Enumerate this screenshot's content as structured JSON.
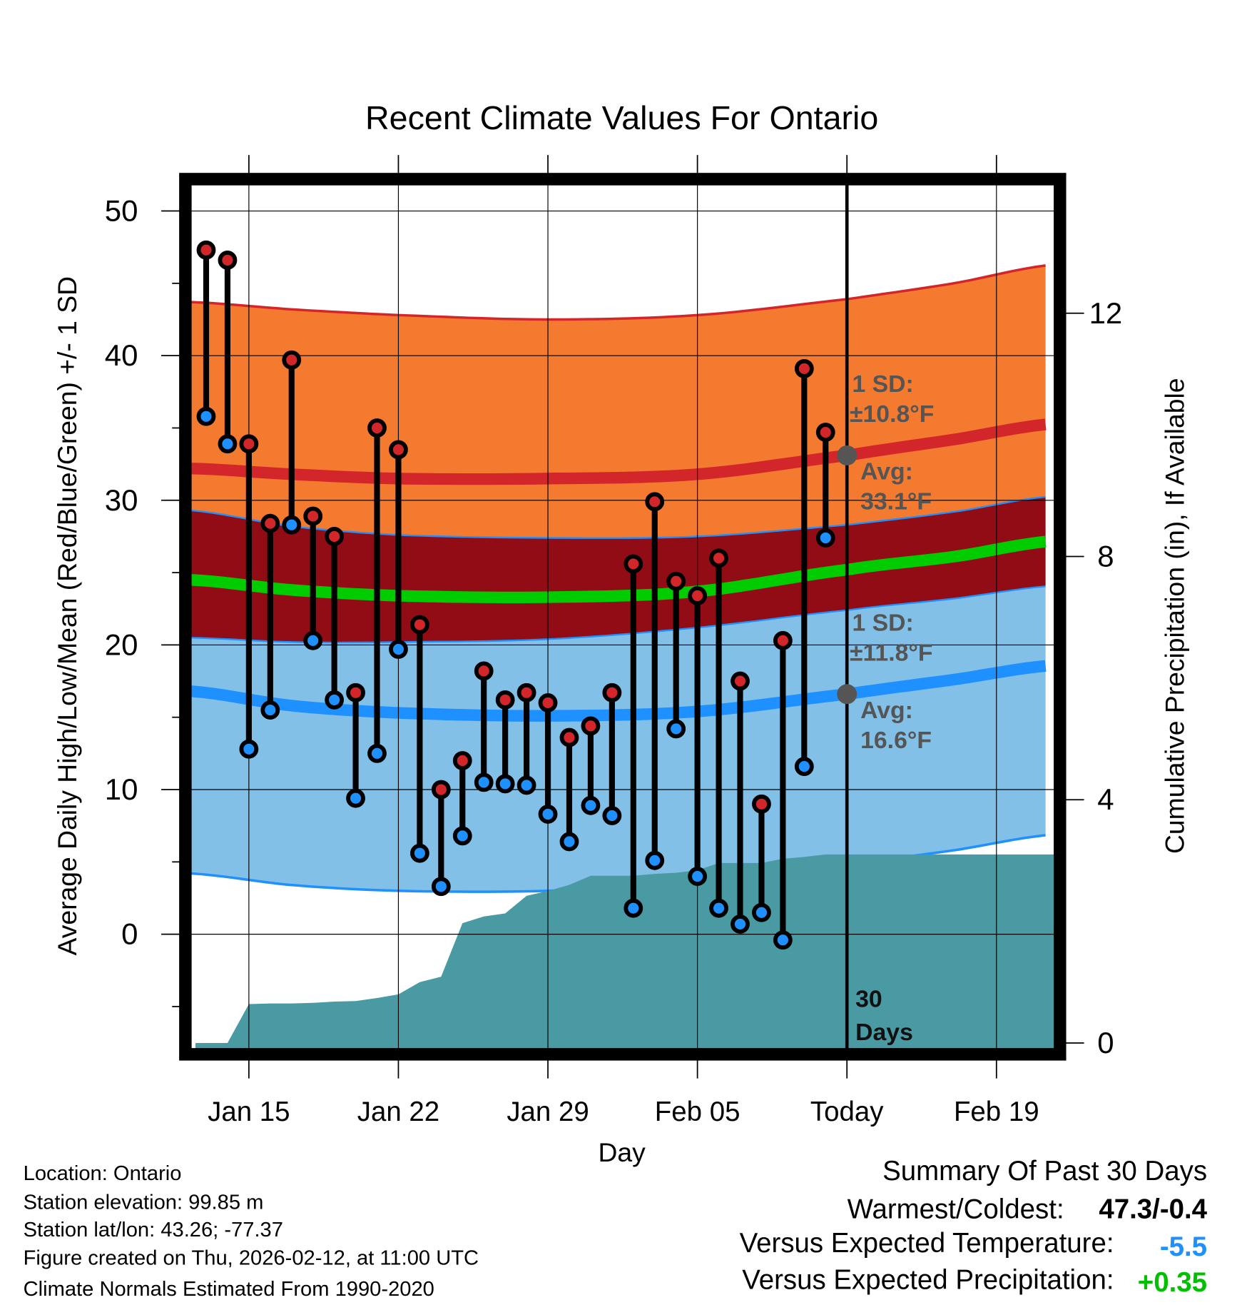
{
  "chart_data": {
    "type": "line",
    "title": "Recent Climate Values For Ontario",
    "xlabel": "Day",
    "ylabel": "Average Daily High/Low/Mean (Red/Blue/Green) +/- 1 SD",
    "y2label": "Cumulative Precipitation (in), If Available",
    "x_unit": "days since Jan 15",
    "xlim": [
      -2.7,
      37.7
    ],
    "ylim": [
      -7.9,
      51.8
    ],
    "y2lim": [
      -0.2,
      14.0
    ],
    "x_ticks": [
      {
        "x": 0,
        "label": "Jan 15"
      },
      {
        "x": 7,
        "label": "Jan 22"
      },
      {
        "x": 14,
        "label": "Jan 29"
      },
      {
        "x": 21,
        "label": "Feb 05"
      },
      {
        "x": 28,
        "label": "Today"
      },
      {
        "x": 35,
        "label": "Feb 19"
      }
    ],
    "y_ticks": [
      0,
      10,
      20,
      30,
      40,
      50
    ],
    "y2_ticks": [
      0,
      4,
      8,
      12
    ],
    "today_x": 28,
    "days_x": [
      -2,
      -1,
      0,
      1,
      2,
      3,
      4,
      5,
      6,
      7,
      8,
      9,
      10,
      11,
      12,
      13,
      14,
      15,
      16,
      17,
      18,
      19,
      20,
      21,
      22,
      23,
      24,
      25,
      26,
      27
    ],
    "highs": [
      47.3,
      46.6,
      33.9,
      28.4,
      39.7,
      28.9,
      27.5,
      16.7,
      35.0,
      33.5,
      21.4,
      10.0,
      12.0,
      18.2,
      16.2,
      16.7,
      16.0,
      13.6,
      14.4,
      16.7,
      25.6,
      29.9,
      24.4,
      23.4,
      26.0,
      17.5,
      9.0,
      20.3,
      39.1,
      34.7
    ],
    "lows": [
      35.8,
      33.9,
      12.8,
      15.5,
      28.3,
      20.3,
      16.2,
      9.4,
      12.5,
      19.7,
      5.6,
      3.3,
      6.8,
      10.5,
      10.4,
      10.3,
      8.3,
      6.4,
      8.9,
      8.2,
      1.8,
      5.1,
      14.2,
      4.0,
      1.8,
      0.7,
      1.5,
      -0.4,
      11.6,
      27.4
    ],
    "precip_cumulative": [
      0,
      0,
      0.64,
      0.65,
      0.65,
      0.66,
      0.68,
      0.69,
      0.74,
      0.8,
      1.0,
      1.09,
      1.97,
      2.08,
      2.13,
      2.42,
      2.5,
      2.6,
      2.75,
      2.75,
      2.75,
      2.78,
      2.8,
      2.84,
      2.96,
      2.96,
      2.96,
      3.03,
      3.06,
      3.1
    ],
    "precip_extend_to_x": 37.7,
    "normals_x": [
      -2.7,
      2,
      7,
      14,
      21,
      28,
      33,
      37.7
    ],
    "normal_high_mean": [
      32.2,
      31.8,
      31.5,
      31.5,
      31.8,
      33.1,
      34.2,
      35.3
    ],
    "normal_high_upper": [
      43.7,
      43.2,
      42.8,
      42.5,
      42.8,
      43.9,
      45.0,
      46.3
    ],
    "normal_high_lower": [
      29.3,
      28.2,
      27.6,
      27.4,
      27.5,
      28.3,
      29.2,
      30.3
    ],
    "normal_mean": [
      24.5,
      23.8,
      23.4,
      23.3,
      23.7,
      25.2,
      26.1,
      27.2
    ],
    "normal_low_mean": [
      16.8,
      15.8,
      15.3,
      15.1,
      15.4,
      16.6,
      17.6,
      18.6
    ],
    "normal_low_upper": [
      20.5,
      20.2,
      20.2,
      20.4,
      21.2,
      22.4,
      23.2,
      24.1
    ],
    "normal_low_lower": [
      4.2,
      3.4,
      3.0,
      3.0,
      3.6,
      4.8,
      5.8,
      6.9
    ],
    "annotations": {
      "high_sd_label": "1 SD:",
      "high_sd_value": "±10.8°F",
      "high_avg_label": "Avg:",
      "high_avg_value": "33.1°F",
      "high_avg": 33.1,
      "low_sd_label": "1 SD:",
      "low_sd_value": "±11.8°F",
      "low_avg_label": "Avg:",
      "low_avg_value": "16.6°F",
      "low_avg": 16.6,
      "days_label_1": "30",
      "days_label_2": "Days"
    },
    "colors": {
      "high_band": "#f47a30",
      "mean_band": "#920c15",
      "low_band": "#83c0e8",
      "high_line": "#d3262a",
      "mean_line": "#00cc00",
      "low_line": "#1e90ff",
      "precip": "#4a9aa3",
      "high_dot": "#d3262a",
      "low_dot": "#1e90ff"
    }
  },
  "footer": {
    "location": "Location: Ontario",
    "elevation": "Station elevation: 99.85 m",
    "latlon": "Station lat/lon: 43.26; -77.37",
    "created": "Figure created on Thu, 2026-02-12, at 11:00 UTC",
    "normals": "Climate Normals Estimated From 1990-2020"
  },
  "summary": {
    "title": "Summary Of Past 30 Days",
    "warmest_label": "Warmest/Coldest:",
    "warmest_value": "47.3/-0.4",
    "temp_label": "Versus Expected Temperature:",
    "temp_value": "-5.5",
    "precip_label": "Versus Expected Precipitation:",
    "precip_value": "+0.35",
    "temp_color": "#1e90ff",
    "precip_color": "#00c000"
  }
}
